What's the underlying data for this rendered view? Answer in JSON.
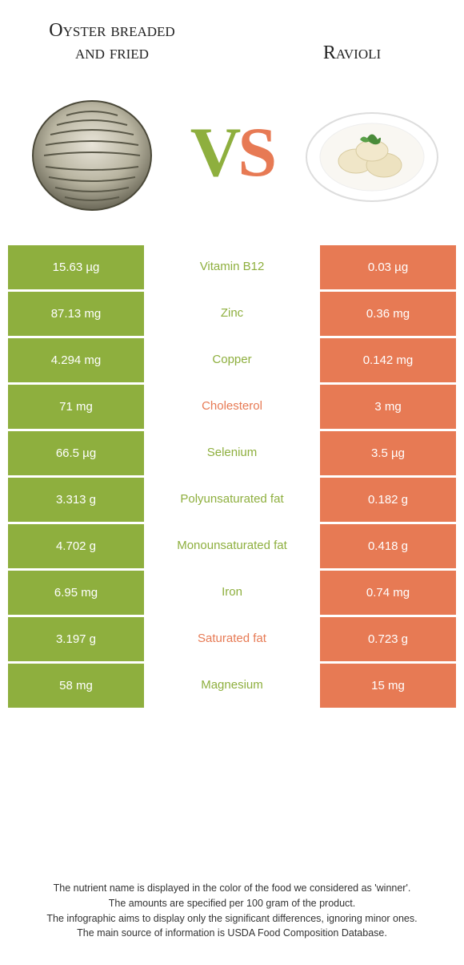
{
  "colors": {
    "left": "#8eaf3e",
    "right": "#e77a54",
    "background": "#ffffff",
    "text_dark": "#222222"
  },
  "titles": {
    "left": "Oyster breaded and fried",
    "right": "Ravioli"
  },
  "vs": {
    "v": "V",
    "s": "S"
  },
  "rows": [
    {
      "left": "15.63 µg",
      "label": "Vitamin B12",
      "right": "0.03 µg",
      "winner": "left"
    },
    {
      "left": "87.13 mg",
      "label": "Zinc",
      "right": "0.36 mg",
      "winner": "left"
    },
    {
      "left": "4.294 mg",
      "label": "Copper",
      "right": "0.142 mg",
      "winner": "left"
    },
    {
      "left": "71 mg",
      "label": "Cholesterol",
      "right": "3 mg",
      "winner": "right"
    },
    {
      "left": "66.5 µg",
      "label": "Selenium",
      "right": "3.5 µg",
      "winner": "left"
    },
    {
      "left": "3.313 g",
      "label": "Polyunsaturated fat",
      "right": "0.182 g",
      "winner": "left"
    },
    {
      "left": "4.702 g",
      "label": "Monounsaturated fat",
      "right": "0.418 g",
      "winner": "left"
    },
    {
      "left": "6.95 mg",
      "label": "Iron",
      "right": "0.74 mg",
      "winner": "left"
    },
    {
      "left": "3.197 g",
      "label": "Saturated fat",
      "right": "0.723 g",
      "winner": "right"
    },
    {
      "left": "58 mg",
      "label": "Magnesium",
      "right": "15 mg",
      "winner": "left"
    }
  ],
  "footer": {
    "line1": "The nutrient name is displayed in the color of the food we considered as 'winner'.",
    "line2": "The amounts are specified per 100 gram of the product.",
    "line3": "The infographic aims to display only the significant differences, ignoring minor ones.",
    "line4": "The main source of information is USDA Food Composition Database."
  }
}
